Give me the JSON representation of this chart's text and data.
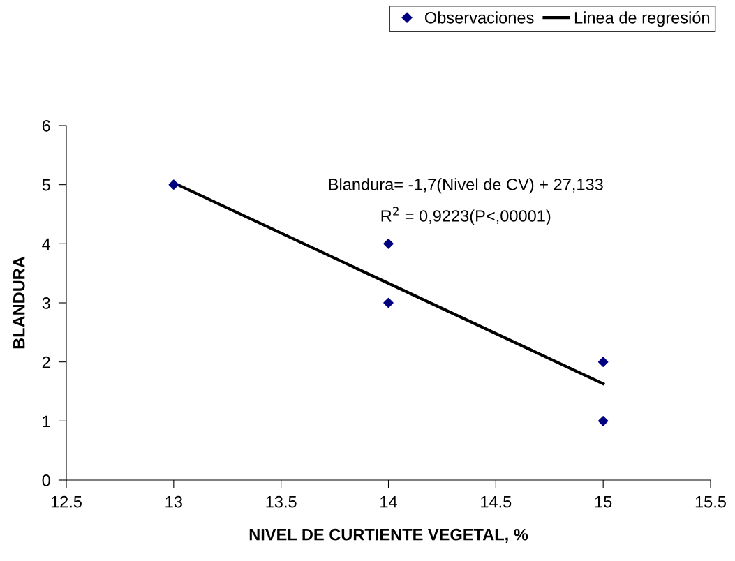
{
  "chart_data": {
    "type": "scatter",
    "xlabel": "NIVEL DE CURTIENTE VEGETAL, %",
    "ylabel": "BLANDURA",
    "series": [
      {
        "name": "Observaciones",
        "color": "#000080",
        "marker": "diamond",
        "x": [
          13,
          14,
          14,
          15,
          15
        ],
        "values": [
          5,
          4,
          3,
          2,
          1
        ]
      },
      {
        "name": "Linea de regresión",
        "type": "line",
        "color": "#000000",
        "marker": "none",
        "line_style": "solid",
        "x": [
          13,
          15
        ],
        "values": [
          5.03,
          1.63
        ]
      }
    ],
    "annotations": [
      "Blandura= -1,7(Nivel de CV) + 27,133",
      "R$^{2}$ = 0,9223(P<,00001)"
    ],
    "xlim": [
      12.5,
      15.5
    ],
    "xticks": [
      12.5,
      13,
      13.5,
      14,
      14.5,
      15,
      15.5
    ],
    "ylim": [
      0,
      6
    ],
    "yticks": [
      0,
      1,
      2,
      3,
      4,
      5,
      6
    ],
    "grid": false,
    "legend": "top right"
  }
}
